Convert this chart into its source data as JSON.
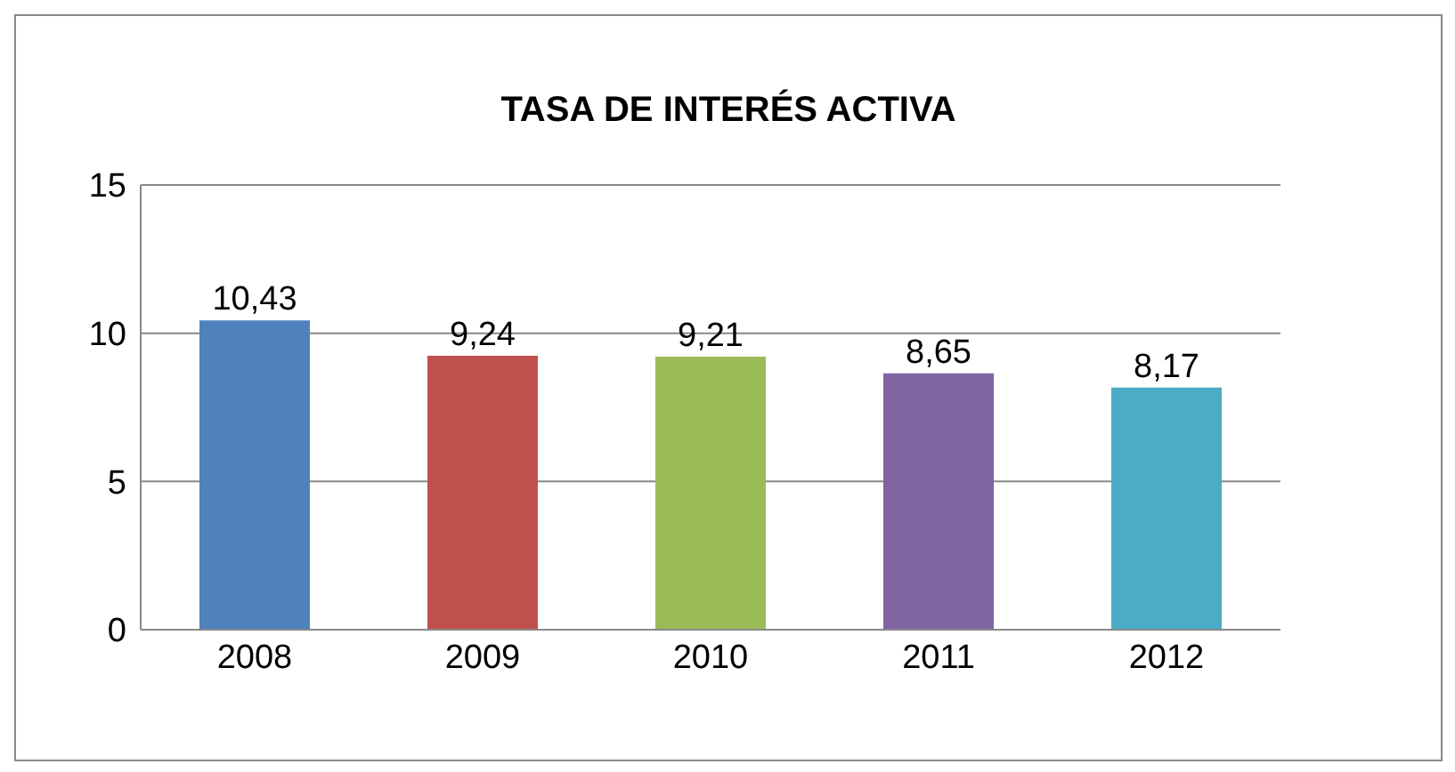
{
  "chart_data": {
    "type": "bar",
    "title": "TASA DE INTERÉS ACTIVA",
    "categories": [
      "2008",
      "2009",
      "2010",
      "2011",
      "2012"
    ],
    "values": [
      10.43,
      9.24,
      9.21,
      8.65,
      8.17
    ],
    "colors": [
      "#4f81bd",
      "#c0504d",
      "#9bbb59",
      "#8064a2",
      "#4bacc6"
    ],
    "value_labels": [
      "10,43",
      "9,24",
      "9,21",
      "8,65",
      "8,17"
    ],
    "ylim": [
      0,
      15
    ],
    "yticks": [
      0,
      5,
      10,
      15
    ],
    "grid": "y"
  }
}
